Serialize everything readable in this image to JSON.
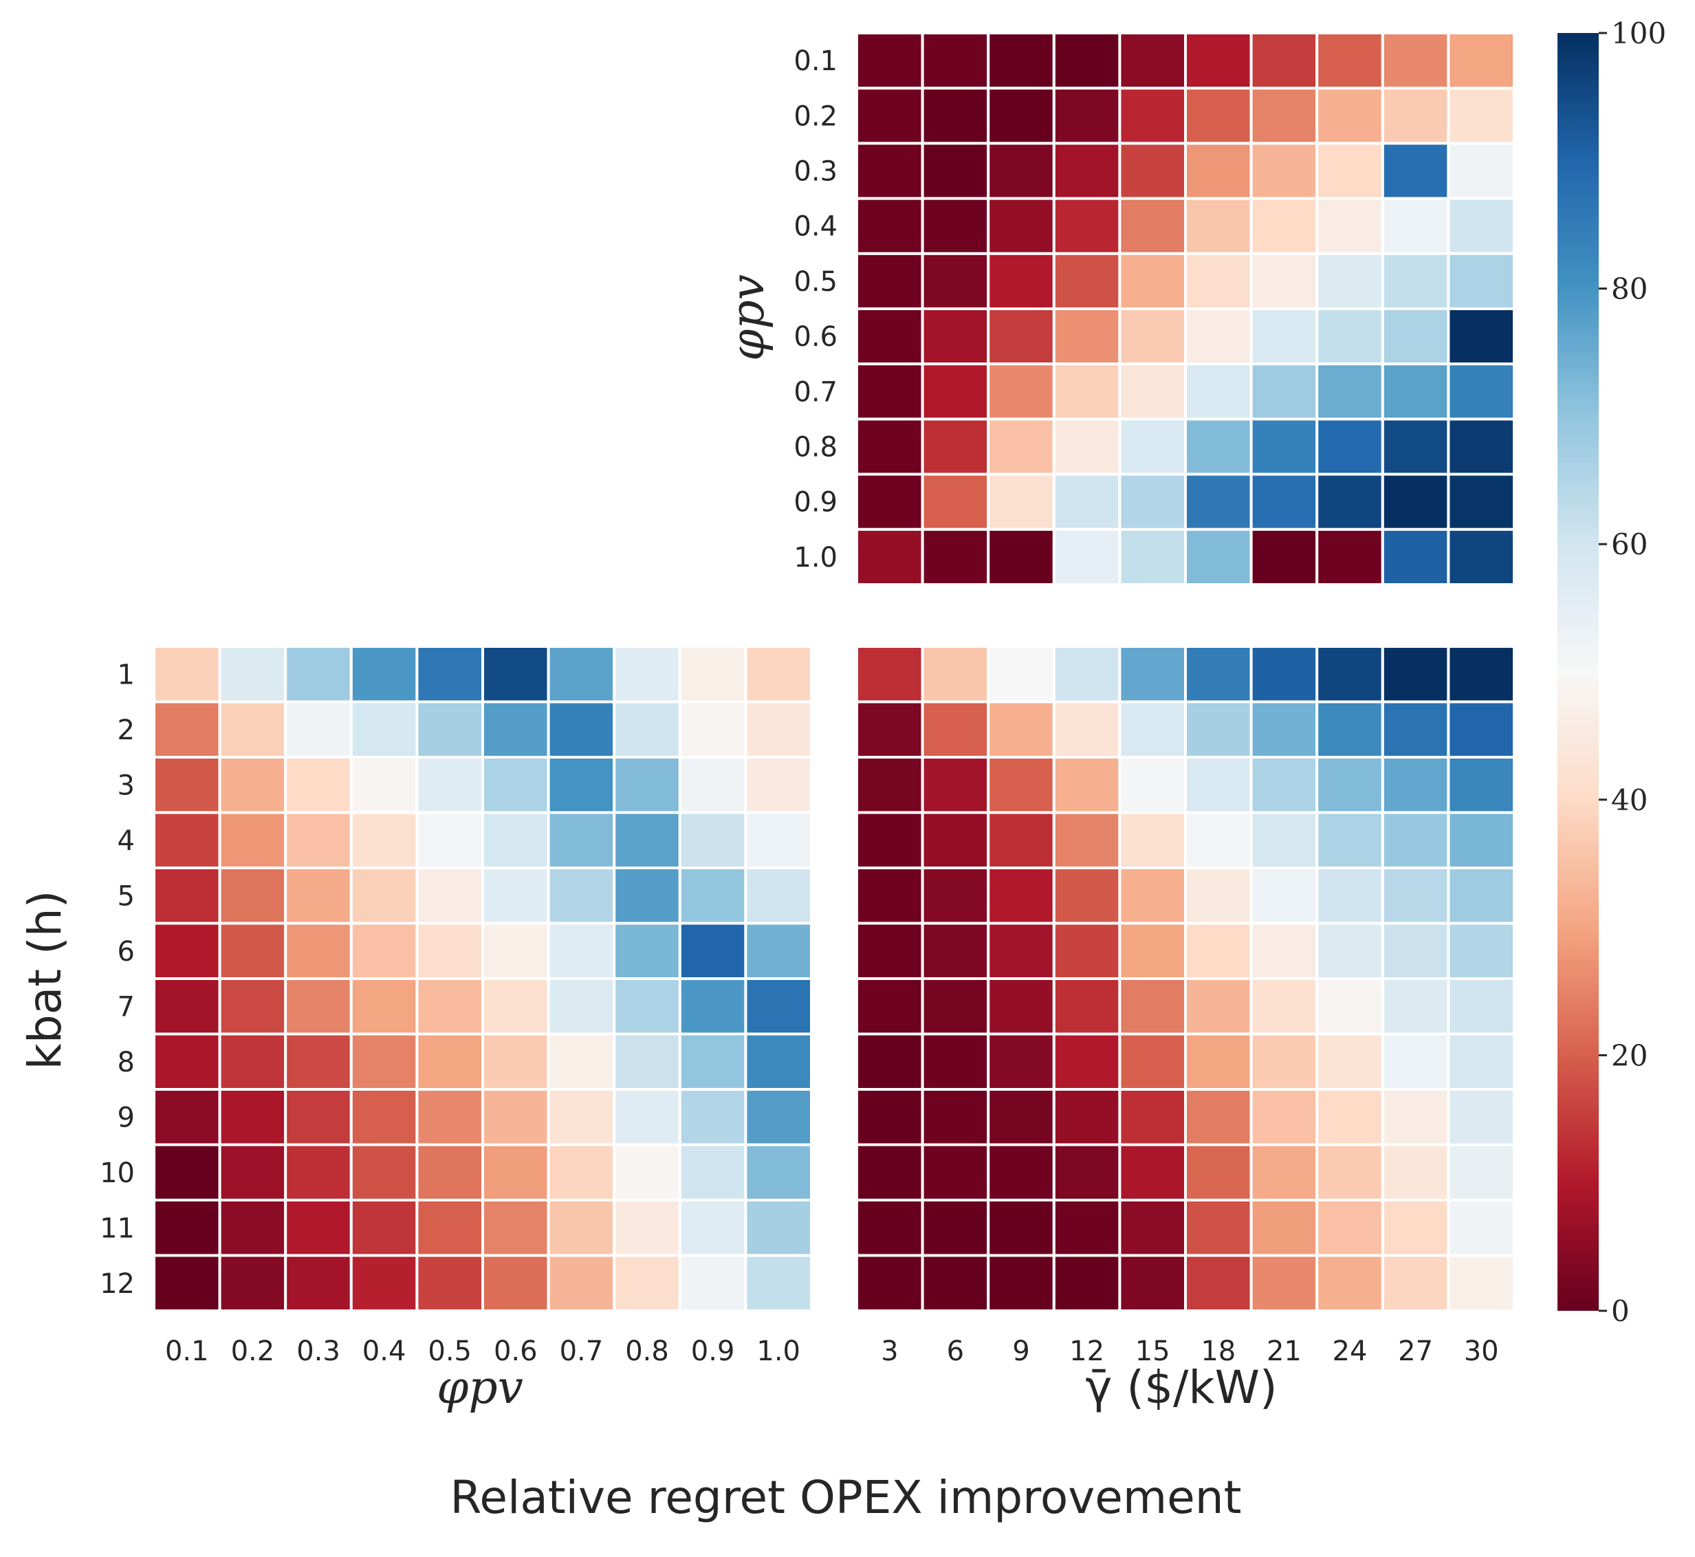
{
  "title": "Relative regret OPEX improvement",
  "colormap": [
    "#67001f",
    "#b2182b",
    "#d6604d",
    "#f4a582",
    "#fddbc7",
    "#f7f7f7",
    "#d1e5f0",
    "#92c5de",
    "#4393c3",
    "#2166ac",
    "#053061"
  ],
  "chart_data": [
    {
      "name": "top",
      "type": "heatmap",
      "xlabel": "γ̄ ($/kW)",
      "ylabel": "φpv",
      "x_categories": [
        "3",
        "6",
        "9",
        "12",
        "15",
        "18",
        "21",
        "24",
        "27",
        "30"
      ],
      "y_categories": [
        "0.1",
        "0.2",
        "0.3",
        "0.4",
        "0.5",
        "0.6",
        "0.7",
        "0.8",
        "0.9",
        "1.0"
      ],
      "values": [
        [
          1,
          1,
          0,
          0,
          5,
          10,
          15,
          20,
          26,
          30
        ],
        [
          1,
          0,
          0,
          3,
          12,
          20,
          25,
          32,
          37,
          42
        ],
        [
          1,
          0,
          3,
          8,
          16,
          28,
          33,
          40,
          88,
          52
        ],
        [
          1,
          1,
          6,
          12,
          24,
          36,
          40,
          46,
          53,
          60
        ],
        [
          1,
          3,
          10,
          18,
          32,
          41,
          46,
          57,
          62,
          66
        ],
        [
          1,
          8,
          15,
          27,
          37,
          46,
          58,
          62,
          66,
          100
        ],
        [
          1,
          10,
          26,
          38,
          44,
          58,
          68,
          75,
          77,
          84
        ],
        [
          1,
          13,
          35,
          45,
          58,
          72,
          84,
          89,
          95,
          98
        ],
        [
          1,
          20,
          42,
          60,
          65,
          86,
          88,
          96,
          100,
          99
        ],
        [
          6,
          1,
          0,
          55,
          62,
          72,
          0,
          1,
          91,
          96
        ]
      ]
    },
    {
      "name": "bottom-left",
      "type": "heatmap",
      "xlabel": "φpv",
      "ylabel": "kbat (h)",
      "x_categories": [
        "0.1",
        "0.2",
        "0.3",
        "0.4",
        "0.5",
        "0.6",
        "0.7",
        "0.8",
        "0.9",
        "1.0"
      ],
      "y_categories": [
        "1",
        "2",
        "3",
        "4",
        "5",
        "6",
        "7",
        "8",
        "9",
        "10",
        "11",
        "12"
      ],
      "values": [
        [
          38,
          57,
          68,
          79,
          86,
          95,
          77,
          56,
          47,
          39
        ],
        [
          24,
          38,
          52,
          59,
          67,
          78,
          84,
          60,
          49,
          44
        ],
        [
          19,
          32,
          40,
          49,
          56,
          66,
          80,
          72,
          52,
          45
        ],
        [
          16,
          28,
          35,
          42,
          51,
          59,
          72,
          77,
          61,
          53
        ],
        [
          13,
          23,
          31,
          38,
          46,
          56,
          65,
          78,
          70,
          60
        ],
        [
          10,
          19,
          28,
          35,
          41,
          47,
          56,
          73,
          90,
          74
        ],
        [
          8,
          17,
          25,
          30,
          34,
          42,
          57,
          66,
          79,
          87
        ],
        [
          9,
          14,
          17,
          25,
          30,
          37,
          47,
          61,
          70,
          82
        ],
        [
          5,
          9,
          15,
          20,
          26,
          33,
          43,
          56,
          65,
          78
        ],
        [
          0,
          7,
          13,
          18,
          23,
          29,
          39,
          49,
          60,
          72
        ],
        [
          0,
          5,
          10,
          14,
          20,
          25,
          36,
          45,
          56,
          67
        ],
        [
          0,
          4,
          8,
          11,
          16,
          22,
          33,
          41,
          52,
          62
        ]
      ]
    },
    {
      "name": "bottom-right",
      "type": "heatmap",
      "xlabel": "γ̄ ($/kW)",
      "ylabel": "",
      "x_categories": [
        "3",
        "6",
        "9",
        "12",
        "15",
        "18",
        "21",
        "24",
        "27",
        "30"
      ],
      "y_categories": [
        "1",
        "2",
        "3",
        "4",
        "5",
        "6",
        "7",
        "8",
        "9",
        "10",
        "11",
        "12"
      ],
      "values": [
        [
          13,
          36,
          50,
          60,
          76,
          85,
          91,
          96,
          100,
          100
        ],
        [
          3,
          20,
          32,
          43,
          58,
          67,
          74,
          82,
          87,
          90
        ],
        [
          2,
          8,
          20,
          32,
          51,
          58,
          66,
          72,
          76,
          83
        ],
        [
          1,
          6,
          13,
          25,
          42,
          51,
          59,
          66,
          69,
          73
        ],
        [
          1,
          4,
          10,
          19,
          32,
          45,
          53,
          60,
          64,
          68
        ],
        [
          1,
          3,
          8,
          16,
          30,
          40,
          46,
          57,
          61,
          65
        ],
        [
          1,
          2,
          6,
          13,
          24,
          33,
          42,
          49,
          57,
          60
        ],
        [
          0,
          1,
          4,
          10,
          20,
          30,
          37,
          43,
          53,
          59
        ],
        [
          0,
          1,
          2,
          6,
          13,
          24,
          35,
          40,
          46,
          57
        ],
        [
          0,
          1,
          1,
          3,
          9,
          21,
          31,
          37,
          44,
          54
        ],
        [
          0,
          0,
          0,
          1,
          5,
          18,
          29,
          35,
          40,
          52
        ],
        [
          0,
          0,
          0,
          0,
          3,
          15,
          26,
          32,
          39,
          47
        ]
      ]
    }
  ],
  "colorbar": {
    "min": 0,
    "max": 100,
    "ticks": [
      "0",
      "20",
      "40",
      "60",
      "80",
      "100"
    ]
  }
}
